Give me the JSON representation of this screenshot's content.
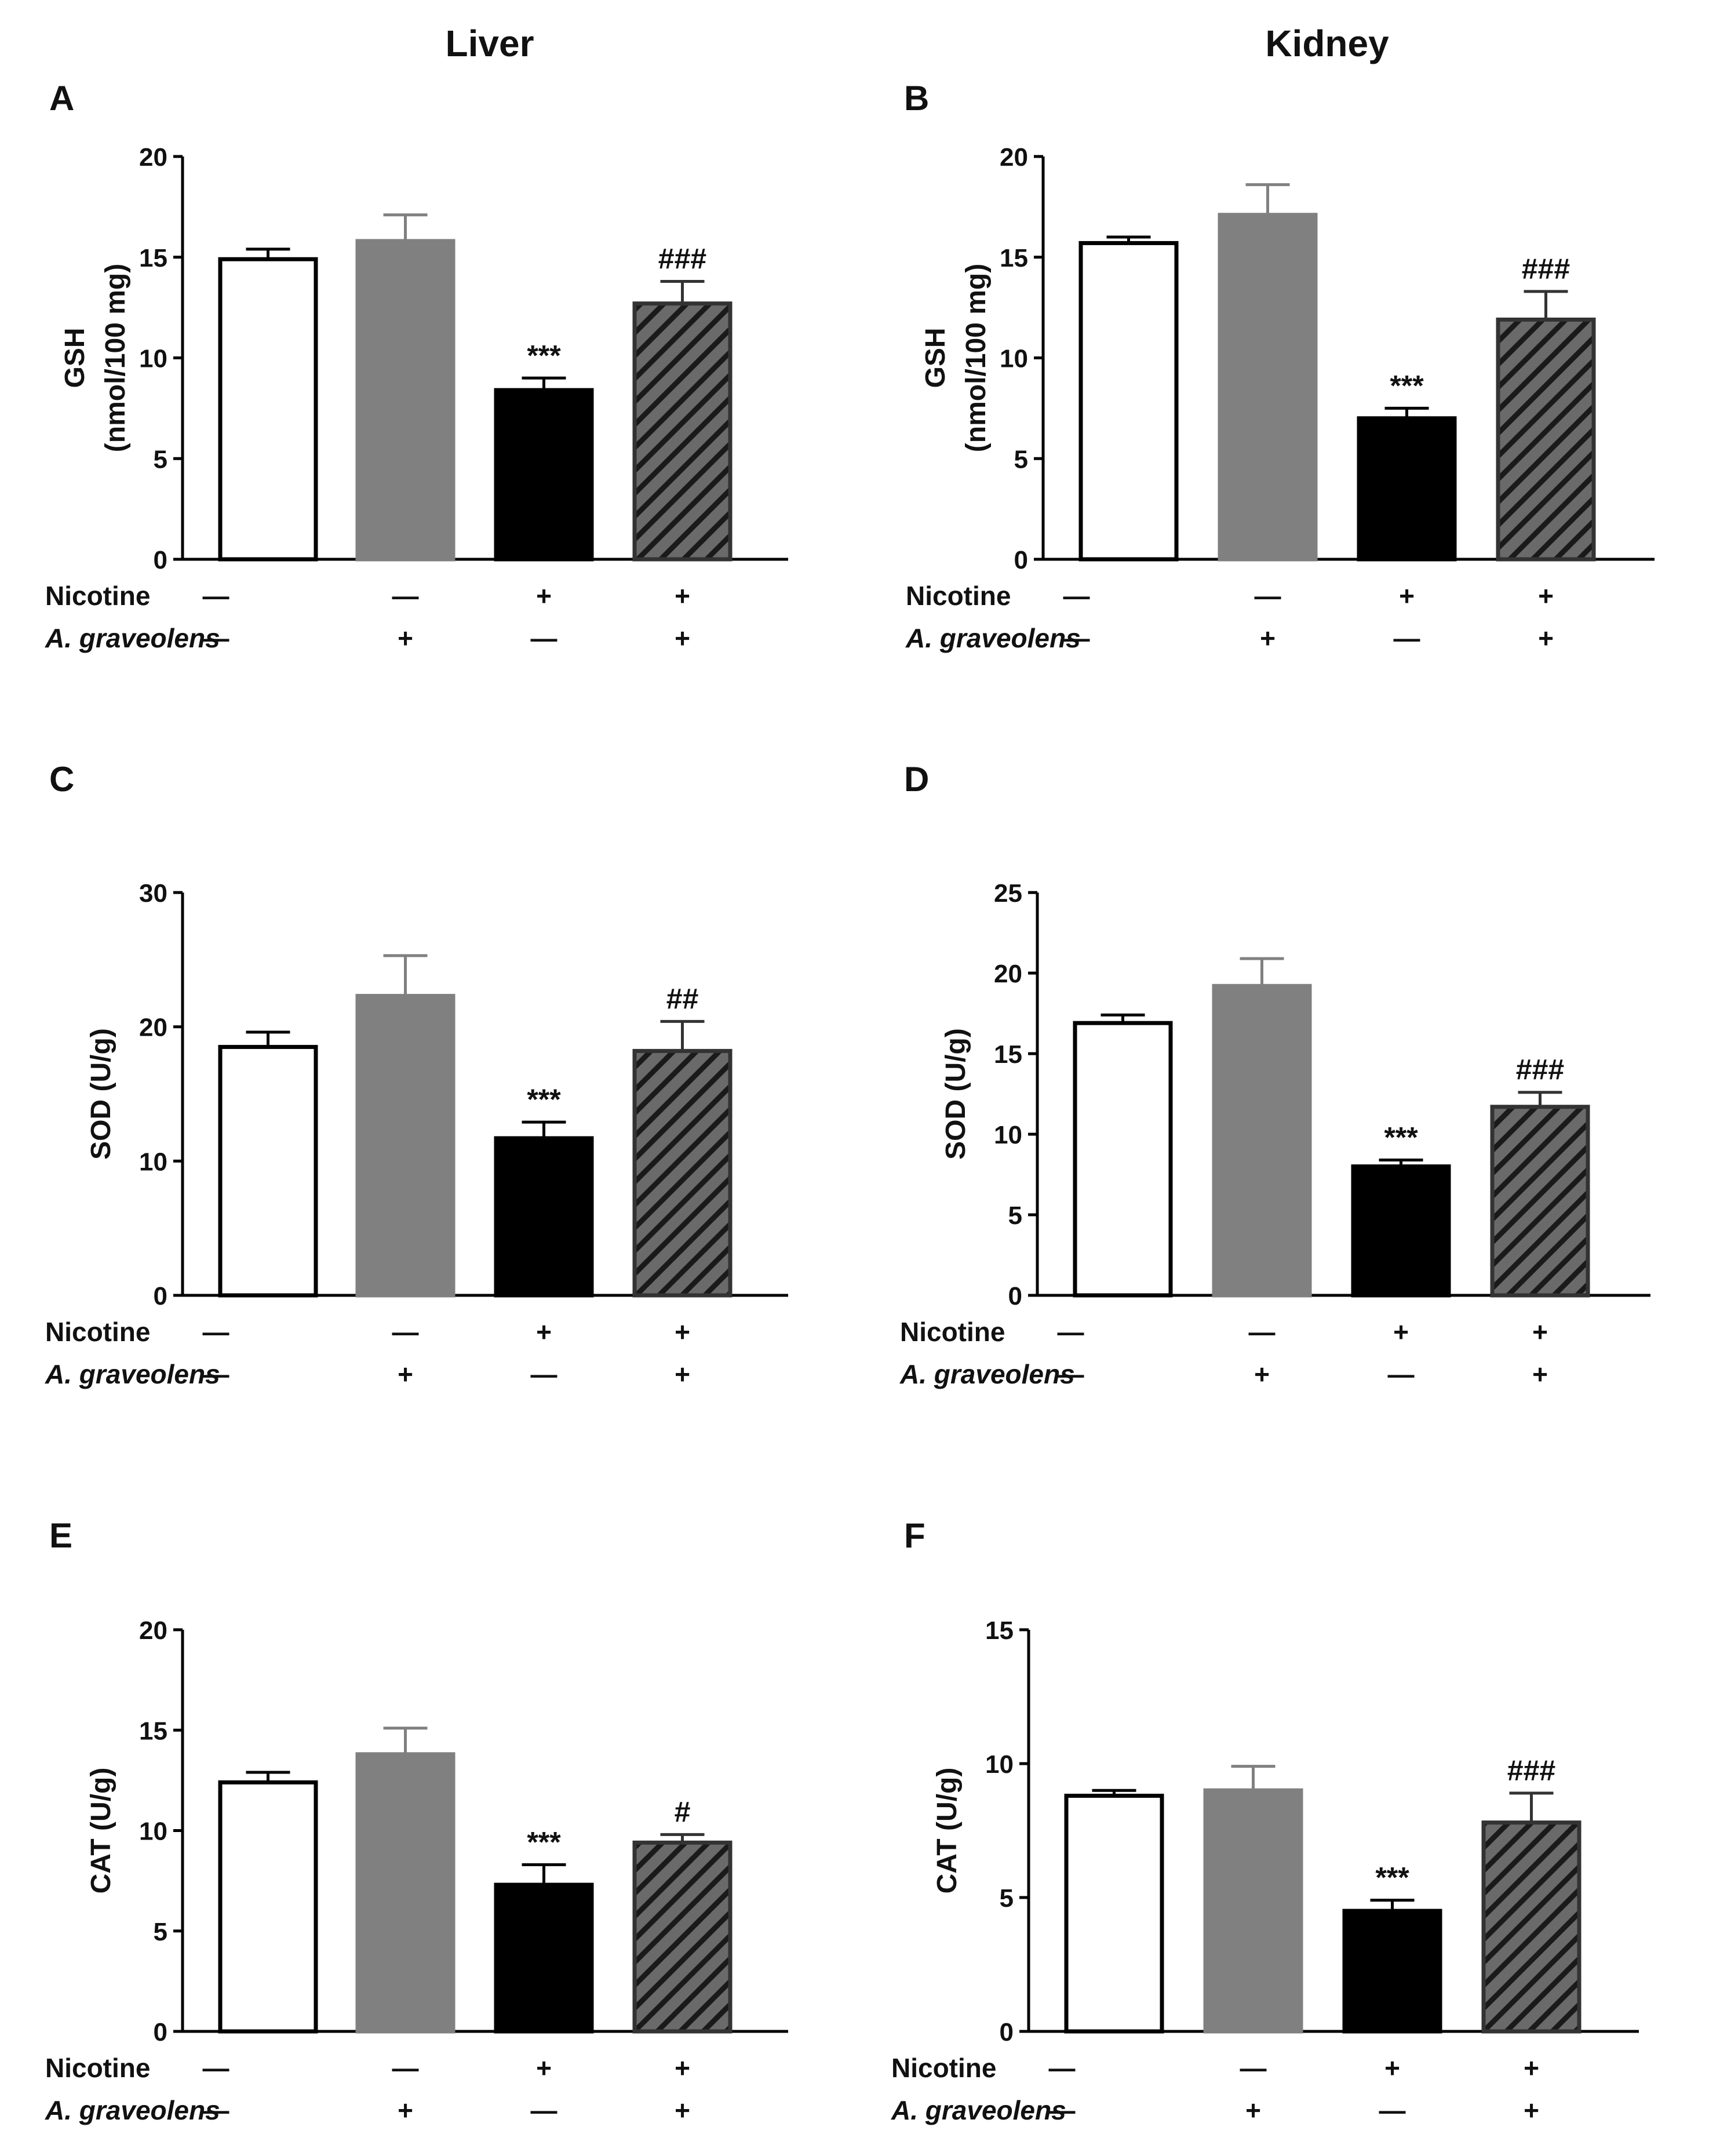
{
  "columns": [
    "Liver",
    "Kidney"
  ],
  "row_labels": {
    "nicotine": "Nicotine",
    "extract": "A. graveolens"
  },
  "groups": [
    {
      "nicotine": "—",
      "extract": "—"
    },
    {
      "nicotine": "—",
      "extract": "+"
    },
    {
      "nicotine": "+",
      "extract": "—"
    },
    {
      "nicotine": "+",
      "extract": "+"
    }
  ],
  "colors": {
    "control": "#ffffff",
    "extract": "#808080",
    "nicotine": "#000000",
    "combined": "#666666",
    "edge": "#333333"
  },
  "chart_data": [
    {
      "panel": "A",
      "type": "bar",
      "ylabel_line1": "GSH",
      "ylabel_line2": "(nmol/100 mg)",
      "ylim": [
        0,
        20
      ],
      "yticks": [
        0,
        5,
        10,
        15,
        20
      ],
      "values": [
        14.9,
        15.8,
        8.4,
        12.7
      ],
      "errors": [
        0.5,
        1.3,
        0.6,
        1.1
      ],
      "annotations": [
        "",
        "",
        "***",
        "###"
      ]
    },
    {
      "panel": "B",
      "type": "bar",
      "ylabel_line1": "GSH",
      "ylabel_line2": "(nmol/100 mg)",
      "ylim": [
        0,
        20
      ],
      "yticks": [
        0,
        5,
        10,
        15,
        20
      ],
      "values": [
        15.7,
        17.1,
        7.0,
        11.9
      ],
      "errors": [
        0.3,
        1.5,
        0.5,
        1.4
      ],
      "annotations": [
        "",
        "",
        "***",
        "###"
      ]
    },
    {
      "panel": "C",
      "type": "bar",
      "ylabel_line1": "SOD (U/g)",
      "ylabel_line2": "",
      "ylim": [
        0,
        30
      ],
      "yticks": [
        0,
        10,
        20,
        30
      ],
      "values": [
        18.5,
        22.3,
        11.7,
        18.2
      ],
      "errors": [
        1.1,
        3.0,
        1.2,
        2.2
      ],
      "annotations": [
        "",
        "",
        "***",
        "##"
      ]
    },
    {
      "panel": "D",
      "type": "bar",
      "ylabel_line1": "SOD (U/g)",
      "ylabel_line2": "",
      "ylim": [
        0,
        25
      ],
      "yticks": [
        0,
        5,
        10,
        15,
        20,
        25
      ],
      "values": [
        16.9,
        19.2,
        8.0,
        11.7
      ],
      "errors": [
        0.5,
        1.7,
        0.4,
        0.9
      ],
      "annotations": [
        "",
        "",
        "***",
        "###"
      ]
    },
    {
      "panel": "E",
      "type": "bar",
      "ylabel_line1": "CAT (U/g)",
      "ylabel_line2": "",
      "ylim": [
        0,
        20
      ],
      "yticks": [
        0,
        5,
        10,
        15,
        20
      ],
      "values": [
        12.4,
        13.8,
        7.3,
        9.4
      ],
      "errors": [
        0.5,
        1.3,
        1.0,
        0.4
      ],
      "annotations": [
        "",
        "",
        "***",
        "#"
      ]
    },
    {
      "panel": "F",
      "type": "bar",
      "ylabel_line1": "CAT (U/g)",
      "ylabel_line2": "",
      "ylim": [
        0,
        15
      ],
      "yticks": [
        0,
        5,
        10,
        15
      ],
      "values": [
        8.8,
        9.0,
        4.5,
        7.8
      ],
      "errors": [
        0.2,
        0.9,
        0.4,
        1.1
      ],
      "annotations": [
        "",
        "",
        "***",
        "###"
      ]
    }
  ]
}
